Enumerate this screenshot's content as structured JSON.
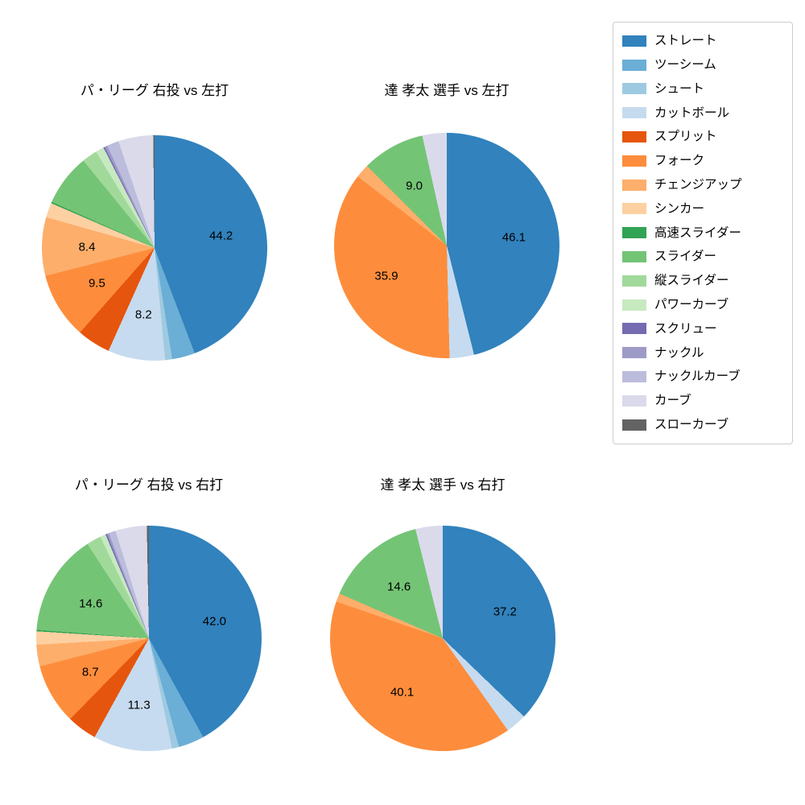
{
  "page": {
    "background_color": "#ffffff"
  },
  "legend": {
    "position": "top-right",
    "items": [
      {
        "label": "ストレート",
        "color": "#3182bd"
      },
      {
        "label": "ツーシーム",
        "color": "#6baed6"
      },
      {
        "label": "シュート",
        "color": "#9ecae1"
      },
      {
        "label": "カットボール",
        "color": "#c6dbef"
      },
      {
        "label": "スプリット",
        "color": "#e6550d"
      },
      {
        "label": "フォーク",
        "color": "#fd8d3c"
      },
      {
        "label": "チェンジアップ",
        "color": "#fdae6b"
      },
      {
        "label": "シンカー",
        "color": "#fdd0a2"
      },
      {
        "label": "高速スライダー",
        "color": "#31a354"
      },
      {
        "label": "スライダー",
        "color": "#74c476"
      },
      {
        "label": "縦スライダー",
        "color": "#a1d99b"
      },
      {
        "label": "パワーカーブ",
        "color": "#c7e9c0"
      },
      {
        "label": "スクリュー",
        "color": "#756bb1"
      },
      {
        "label": "ナックル",
        "color": "#9e9ac8"
      },
      {
        "label": "ナックルカーブ",
        "color": "#bcbddc"
      },
      {
        "label": "カーブ",
        "color": "#dadaeb"
      },
      {
        "label": "スローカーブ",
        "color": "#636363"
      }
    ]
  },
  "chart_data": [
    {
      "type": "pie",
      "title": "パ・リーグ 右投 vs 左打",
      "start": "top",
      "direction": "clockwise",
      "label_threshold": 8,
      "labeled_values": {
        "ストレート": 44.2,
        "カットボール": 8.2,
        "フォーク": 9.5,
        "チェンジアップ": 8.4
      },
      "slices": [
        {
          "name": "ストレート",
          "value": 44.2
        },
        {
          "name": "ツーシーム",
          "value": 3.3
        },
        {
          "name": "シュート",
          "value": 1.0
        },
        {
          "name": "カットボール",
          "value": 8.2
        },
        {
          "name": "スプリット",
          "value": 4.8
        },
        {
          "name": "フォーク",
          "value": 9.5
        },
        {
          "name": "チェンジアップ",
          "value": 8.4
        },
        {
          "name": "シンカー",
          "value": 2.1
        },
        {
          "name": "高速スライダー",
          "value": 0.2
        },
        {
          "name": "スライダー",
          "value": 7.4
        },
        {
          "name": "縦スライダー",
          "value": 2.2
        },
        {
          "name": "パワーカーブ",
          "value": 1.2
        },
        {
          "name": "スクリュー",
          "value": 0.2
        },
        {
          "name": "ナックル",
          "value": 0.4
        },
        {
          "name": "ナックルカーブ",
          "value": 1.7
        },
        {
          "name": "カーブ",
          "value": 5.0
        },
        {
          "name": "スローカーブ",
          "value": 0.2
        }
      ]
    },
    {
      "type": "pie",
      "title": "達 孝太 選手 vs 左打",
      "start": "top",
      "direction": "clockwise",
      "label_threshold": 8,
      "labeled_values": {
        "ストレート": 46.1,
        "フォーク": 35.9,
        "スライダー": 9.0
      },
      "slices": [
        {
          "name": "ストレート",
          "value": 46.1
        },
        {
          "name": "カットボール",
          "value": 3.5
        },
        {
          "name": "フォーク",
          "value": 35.9
        },
        {
          "name": "チェンジアップ",
          "value": 2.0
        },
        {
          "name": "スライダー",
          "value": 9.0
        },
        {
          "name": "カーブ",
          "value": 3.5
        }
      ]
    },
    {
      "type": "pie",
      "title": "パ・リーグ 右投 vs 右打",
      "start": "top",
      "direction": "clockwise",
      "label_threshold": 8,
      "labeled_values": {
        "ストレート": 42.0,
        "カットボール": 11.3,
        "フォーク": 8.7,
        "スライダー": 14.6
      },
      "slices": [
        {
          "name": "ストレート",
          "value": 42.0
        },
        {
          "name": "ツーシーム",
          "value": 3.7
        },
        {
          "name": "シュート",
          "value": 1.0
        },
        {
          "name": "カットボール",
          "value": 11.3
        },
        {
          "name": "スプリット",
          "value": 4.3
        },
        {
          "name": "フォーク",
          "value": 8.7
        },
        {
          "name": "チェンジアップ",
          "value": 3.1
        },
        {
          "name": "シンカー",
          "value": 1.9
        },
        {
          "name": "高速スライダー",
          "value": 0.2
        },
        {
          "name": "スライダー",
          "value": 14.6
        },
        {
          "name": "縦スライダー",
          "value": 2.1
        },
        {
          "name": "パワーカーブ",
          "value": 0.8
        },
        {
          "name": "スクリュー",
          "value": 0.2
        },
        {
          "name": "ナックル",
          "value": 0.3
        },
        {
          "name": "ナックルカーブ",
          "value": 1.0
        },
        {
          "name": "カーブ",
          "value": 4.5
        },
        {
          "name": "スローカーブ",
          "value": 0.3
        }
      ]
    },
    {
      "type": "pie",
      "title": "達 孝太 選手 vs 右打",
      "start": "top",
      "direction": "clockwise",
      "label_threshold": 8,
      "labeled_values": {
        "ストレート": 37.2,
        "フォーク": 40.1,
        "スライダー": 14.6
      },
      "slices": [
        {
          "name": "ストレート",
          "value": 37.2
        },
        {
          "name": "カットボール",
          "value": 3.0
        },
        {
          "name": "フォーク",
          "value": 40.1
        },
        {
          "name": "チェンジアップ",
          "value": 1.2
        },
        {
          "name": "スライダー",
          "value": 14.6
        },
        {
          "name": "カーブ",
          "value": 3.9
        }
      ]
    }
  ]
}
